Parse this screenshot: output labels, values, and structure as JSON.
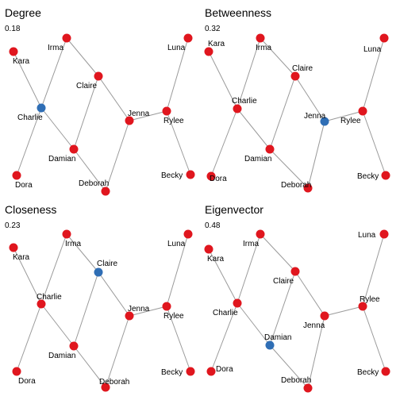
{
  "colors": {
    "default_node": "#e0161e",
    "highlight_node": "#2f6eb5",
    "edge": "#9a9a9a"
  },
  "panels": [
    {
      "title": "Degree",
      "value": "0.18",
      "highlight": "Charlie"
    },
    {
      "title": "Betweenness",
      "value": "0.32",
      "highlight": "Jenna"
    },
    {
      "title": "Closeness",
      "value": "0.23",
      "highlight": "Claire"
    },
    {
      "title": "Eigenvector",
      "value": "0.48",
      "highlight": "Damian"
    }
  ],
  "nodes": [
    {
      "id": "Kara",
      "label": "Kara"
    },
    {
      "id": "Irma",
      "label": "Irma"
    },
    {
      "id": "Claire",
      "label": "Claire"
    },
    {
      "id": "Charlie",
      "label": "Charlie"
    },
    {
      "id": "Jenna",
      "label": "Jenna"
    },
    {
      "id": "Rylee",
      "label": "Rylee"
    },
    {
      "id": "Luna",
      "label": "Luna"
    },
    {
      "id": "Damian",
      "label": "Damian"
    },
    {
      "id": "Dora",
      "label": "Dora"
    },
    {
      "id": "Deborah",
      "label": "Deborah"
    },
    {
      "id": "Becky",
      "label": "Becky"
    }
  ],
  "edges": [
    [
      "Kara",
      "Charlie"
    ],
    [
      "Irma",
      "Charlie"
    ],
    [
      "Irma",
      "Claire"
    ],
    [
      "Charlie",
      "Dora"
    ],
    [
      "Charlie",
      "Damian"
    ],
    [
      "Claire",
      "Damian"
    ],
    [
      "Claire",
      "Jenna"
    ],
    [
      "Damian",
      "Deborah"
    ],
    [
      "Deborah",
      "Jenna"
    ],
    [
      "Jenna",
      "Rylee"
    ],
    [
      "Rylee",
      "Luna"
    ],
    [
      "Rylee",
      "Becky"
    ]
  ]
}
